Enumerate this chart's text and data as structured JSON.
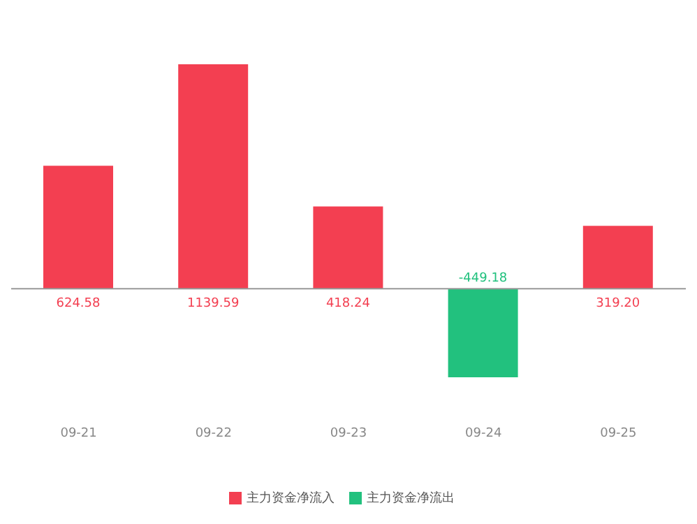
{
  "chart_data": {
    "type": "bar",
    "categories": [
      "09-21",
      "09-22",
      "09-23",
      "09-24",
      "09-25"
    ],
    "stacked": true,
    "legend": "bottom",
    "grid": false,
    "series": [
      {
        "name": "主力资金净流入",
        "color": "#f33f51",
        "values": [
          624.58,
          1139.59,
          418.24,
          null,
          319.2
        ],
        "value_labels": [
          "624.58",
          "1139.59",
          "418.24",
          null,
          "319.20"
        ]
      },
      {
        "name": "主力资金净流出",
        "color": "#22c17e",
        "values": [
          null,
          null,
          null,
          -449.18,
          null
        ],
        "value_labels": [
          null,
          null,
          null,
          "-449.18",
          null
        ]
      }
    ]
  }
}
